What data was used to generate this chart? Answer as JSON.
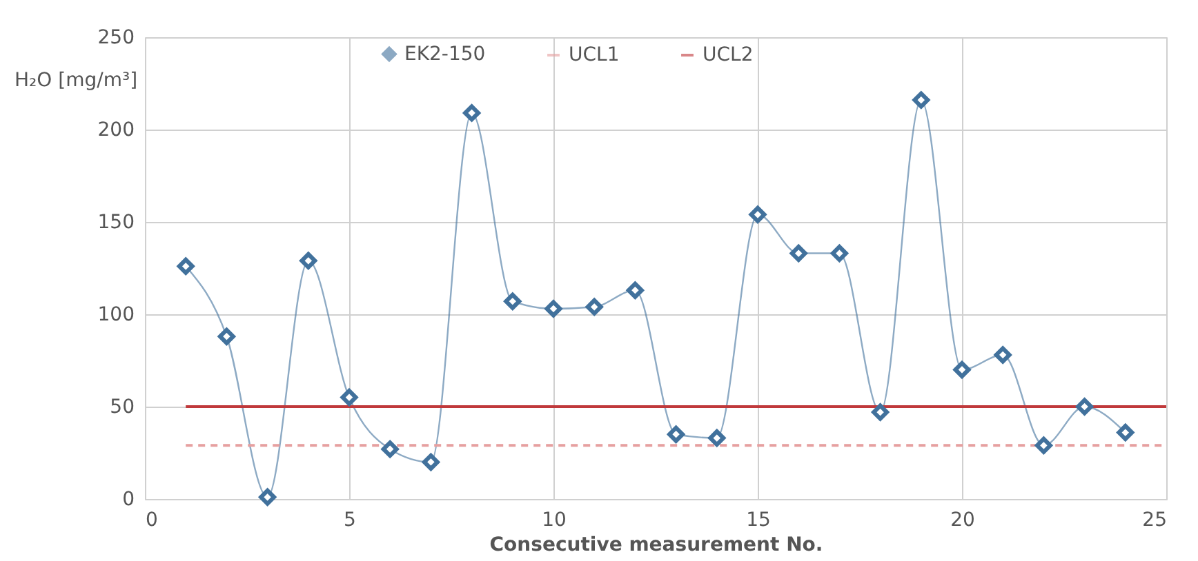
{
  "chart_data": {
    "type": "line",
    "xlabel": "Consecutive measurement No.",
    "ylabel": "H₂O [mg/m³]",
    "series": [
      {
        "name": "EK2-150",
        "color": "#41719c",
        "marker": "diamond",
        "line_style": "solid",
        "x": [
          1,
          2,
          3,
          4,
          5,
          6,
          7,
          8,
          9,
          10,
          11,
          12,
          13,
          14,
          15,
          16,
          17,
          18,
          19,
          20,
          21,
          22,
          23,
          24
        ],
        "values": [
          126,
          88,
          1,
          129,
          55,
          27,
          20,
          209,
          107,
          103,
          104,
          113,
          35,
          33,
          154,
          133,
          133,
          47,
          216,
          70,
          78,
          29,
          50,
          36
        ]
      },
      {
        "name": "UCL1",
        "color": "#e6a0a0",
        "marker": "none",
        "line_style": "dashed",
        "x": [
          1,
          25
        ],
        "values": [
          29,
          29
        ]
      },
      {
        "name": "UCL2",
        "color": "#c0393b",
        "marker": "none",
        "line_style": "solid",
        "x": [
          1,
          25
        ],
        "values": [
          50,
          50
        ]
      }
    ],
    "xlim": [
      0,
      25
    ],
    "xticks": [
      0,
      5,
      10,
      15,
      20,
      25
    ],
    "ylim": [
      0,
      250
    ],
    "yticks": [
      0,
      50,
      100,
      150,
      200,
      250
    ],
    "grid": true,
    "legend": "top"
  }
}
